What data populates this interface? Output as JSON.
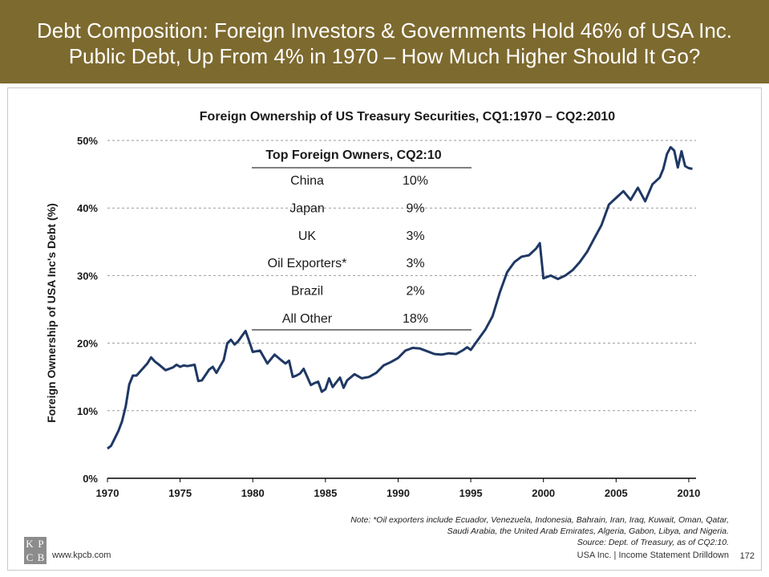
{
  "header": {
    "line1": "Debt Composition: Foreign Investors & Governments Hold 46% of USA Inc.",
    "line2": "Public Debt, Up From 4% in 1970 – How Much Higher Should It Go?"
  },
  "colors": {
    "header_bg": "#7d6a2f",
    "line": "#1f3864",
    "grid": "#9a9a9a"
  },
  "chart_data": {
    "type": "line",
    "title": "Foreign Ownership of US Treasury Securities, CQ1:1970 – CQ2:2010",
    "xlabel": "",
    "ylabel": "Foreign Ownership of USA Inc's Debt (%)",
    "xlim": [
      1970,
      2010.5
    ],
    "ylim": [
      0,
      50
    ],
    "grid": true,
    "x_ticks": [
      "1970",
      "1975",
      "1980",
      "1985",
      "1990",
      "1995",
      "2000",
      "2005",
      "2010"
    ],
    "y_ticks": [
      "0%",
      "10%",
      "20%",
      "30%",
      "40%",
      "50%"
    ],
    "series": [
      {
        "name": "Foreign ownership share",
        "x": [
          1970,
          1970.25,
          1970.5,
          1970.75,
          1971,
          1971.25,
          1971.5,
          1971.75,
          1972,
          1972.5,
          1972.75,
          1973,
          1973.25,
          1973.5,
          1974,
          1974.5,
          1974.75,
          1975,
          1975.25,
          1975.5,
          1976,
          1976.25,
          1976.5,
          1977,
          1977.25,
          1977.5,
          1978,
          1978.25,
          1978.5,
          1978.75,
          1979,
          1979.5,
          1979.75,
          1980,
          1980.5,
          1981,
          1981.5,
          1982,
          1982.25,
          1982.5,
          1982.75,
          1983,
          1983.25,
          1983.5,
          1984,
          1984.25,
          1984.5,
          1984.75,
          1985,
          1985.25,
          1985.5,
          1985.75,
          1986,
          1986.25,
          1986.5,
          1987,
          1987.5,
          1988,
          1988.5,
          1989,
          1989.5,
          1990,
          1990.5,
          1991,
          1991.5,
          1992,
          1992.5,
          1993,
          1993.5,
          1994,
          1994.5,
          1994.75,
          1995,
          1995.5,
          1996,
          1996.5,
          1997,
          1997.5,
          1998,
          1998.5,
          1999,
          1999.5,
          1999.75,
          2000,
          2000.5,
          2001,
          2001.5,
          2002,
          2002.5,
          2003,
          2003.5,
          2004,
          2004.5,
          2005,
          2005.5,
          2006,
          2006.5,
          2007,
          2007.5,
          2008,
          2008.25,
          2008.5,
          2008.75,
          2009,
          2009.25,
          2009.5,
          2009.75,
          2010,
          2010.25
        ],
        "values": [
          4.4,
          4.8,
          5.9,
          7.0,
          8.4,
          10.6,
          13.9,
          15.2,
          15.2,
          16.4,
          17.0,
          17.9,
          17.3,
          16.9,
          16.0,
          16.4,
          16.8,
          16.5,
          16.7,
          16.6,
          16.8,
          14.4,
          14.5,
          16.1,
          16.5,
          15.6,
          17.5,
          20.0,
          20.5,
          19.8,
          20.3,
          21.8,
          20.3,
          18.7,
          18.9,
          17.0,
          18.3,
          17.4,
          17.0,
          17.4,
          15.0,
          15.2,
          15.5,
          16.2,
          13.8,
          14.1,
          14.3,
          12.8,
          13.2,
          14.8,
          13.5,
          14.2,
          14.9,
          13.4,
          14.5,
          15.4,
          14.8,
          15.0,
          15.6,
          16.7,
          17.2,
          17.8,
          18.9,
          19.3,
          19.2,
          18.8,
          18.4,
          18.3,
          18.5,
          18.4,
          19.0,
          19.4,
          19.0,
          20.5,
          22.0,
          24.0,
          27.5,
          30.5,
          32.0,
          32.8,
          33.0,
          34.0,
          34.8,
          29.6,
          30.0,
          29.5,
          30.0,
          30.8,
          32.0,
          33.5,
          35.5,
          37.5,
          40.5,
          41.5,
          42.5,
          41.2,
          43.0,
          41.0,
          43.5,
          44.5,
          45.8,
          48.0,
          49.0,
          48.5,
          46.0,
          48.4,
          46.2,
          45.9,
          45.8
        ],
        "color": "#1f3864"
      }
    ],
    "table": {
      "title": "Top Foreign Owners, CQ2:10",
      "rows": [
        {
          "name": "China",
          "value": "10%"
        },
        {
          "name": "Japan",
          "value": "9%"
        },
        {
          "name": "UK",
          "value": "3%"
        },
        {
          "name": "Oil Exporters*",
          "value": "3%"
        },
        {
          "name": "Brazil",
          "value": "2%"
        },
        {
          "name": "All Other",
          "value": "18%"
        }
      ]
    }
  },
  "notes": {
    "line1": "Note: *Oil exporters include Ecuador, Venezuela, Indonesia, Bahrain, Iran, Iraq, Kuwait, Oman, Qatar,",
    "line2": "Saudi Arabia, the United Arab Emirates, Algeria, Gabon, Libya, and Nigeria.",
    "line3": "Source: Dept. of Treasury, as of CQ2:10."
  },
  "footer": {
    "logo": [
      "K",
      "P",
      "C",
      "B"
    ],
    "website": "www.kpcb.com",
    "right": "USA Inc. | Income Statement Drilldown",
    "page": "172"
  }
}
